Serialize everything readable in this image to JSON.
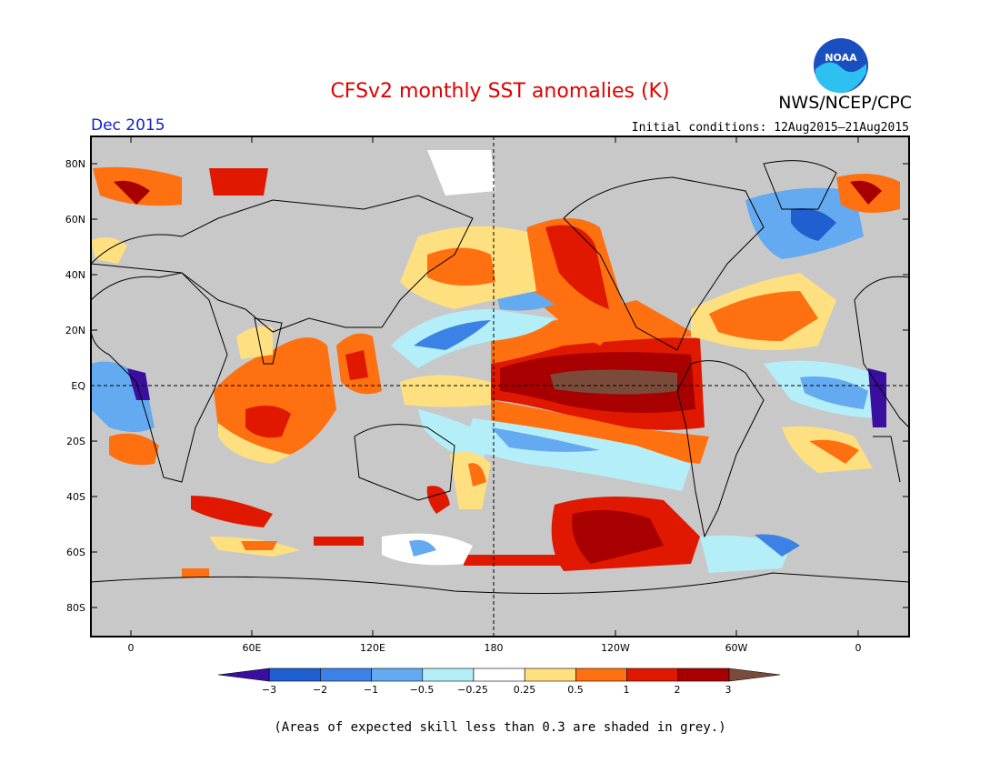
{
  "title": "CFSv2 monthly SST anomalies (K)",
  "agency": "NWS/NCEP/CPC",
  "logo_text": "NOAA",
  "period": "Dec 2015",
  "initial_conditions": "Initial conditions: 12Aug2015–21Aug2015",
  "footnote": "(Areas of expected skill less than 0.3 are shaded in grey.)",
  "lat_labels": [
    "80N",
    "60N",
    "40N",
    "20N",
    "EQ",
    "20S",
    "40S",
    "60S",
    "80S"
  ],
  "lon_labels": [
    "0",
    "60E",
    "120E",
    "180",
    "120W",
    "60W",
    "0"
  ],
  "colorbar": {
    "tick_labels": [
      "−3",
      "−2",
      "−1",
      "−0.5",
      "−0.25",
      "0.25",
      "0.5",
      "1",
      "2",
      "3"
    ],
    "colors": [
      "#3a0fa0",
      "#1f5fd0",
      "#3c82e6",
      "#64aaf0",
      "#b4eef8",
      "#ffffff",
      "#ffe080",
      "#ff7010",
      "#e01800",
      "#a80000",
      "#7a4a3a"
    ]
  },
  "colors": {
    "grey_mask": "#c8c8c8",
    "title": "#e00000",
    "period": "#1020d0"
  }
}
